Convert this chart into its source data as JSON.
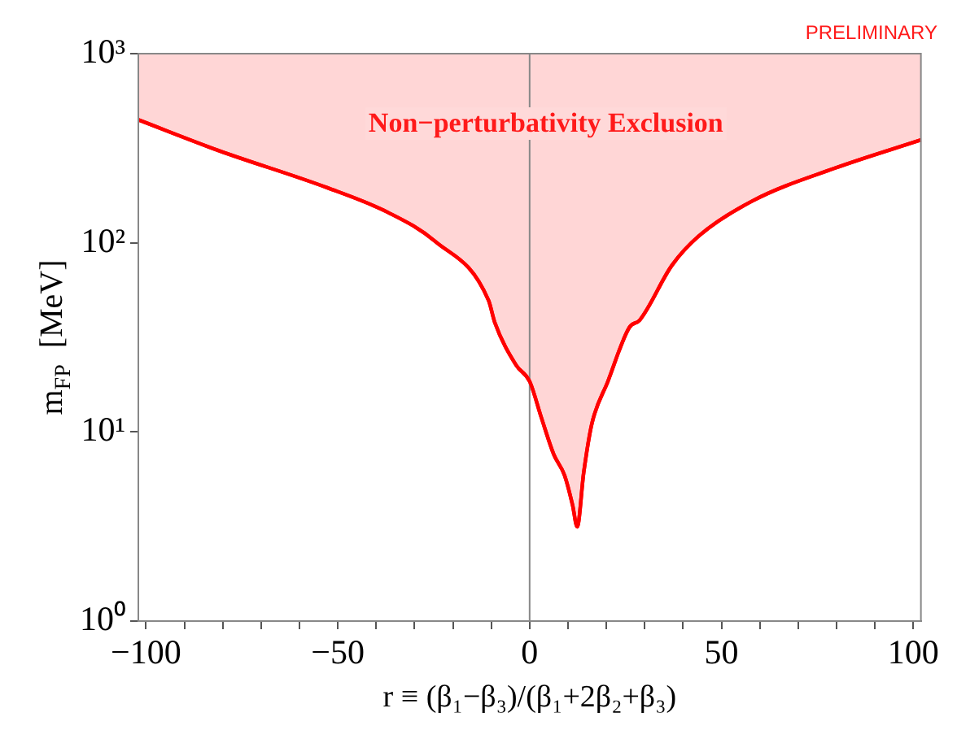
{
  "chart_data": {
    "type": "line",
    "xlabel": "r ≡ (β₁−β₃)/(β₁+2β₂+β₃)",
    "ylabel": "m$_{FP}$  [MeV]",
    "annotations": [
      "Non−perturbativity Exclusion",
      "PRELIMINARY"
    ],
    "series": [
      {
        "color": "#ff0000",
        "x": [
          -102,
          -81,
          -52.9,
          -37,
          -24.7,
          -10.7,
          -9.1,
          -3.5,
          0,
          3,
          6.3,
          9.1,
          11.2,
          12.4,
          14.1,
          16.2,
          20.4,
          26,
          28.7,
          37.1,
          44.2,
          58.2,
          79.3,
          102
        ],
        "values": [
          447,
          307,
          196,
          145,
          102,
          49.5,
          38,
          22.5,
          18.5,
          12,
          7.6,
          5.9,
          4.1,
          3.15,
          6.1,
          11,
          18.5,
          35.7,
          39,
          76,
          109,
          167,
          247,
          350
        ],
        "lower": [
          447,
          307,
          196,
          145,
          102,
          49.5,
          38,
          22.5,
          18.5,
          12,
          7.6,
          5.9,
          4.1,
          3.15,
          6.1,
          11,
          18.5,
          35.7,
          39,
          76,
          109,
          167,
          247,
          350
        ],
        "upper": [
          1000,
          1000,
          1000,
          1000,
          1000,
          1000,
          1000,
          1000,
          1000,
          1000,
          1000,
          1000,
          1000,
          1000,
          1000,
          1000,
          1000,
          1000,
          1000,
          1000,
          1000,
          1000,
          1000,
          1000
        ]
      }
    ],
    "xlim": [
      -102,
      102
    ],
    "xticks": [
      -100,
      {
        "value": -90,
        "label": null
      },
      {
        "value": -80,
        "label": null
      },
      {
        "value": -70,
        "label": null
      },
      {
        "value": -60,
        "label": null
      },
      -50,
      {
        "value": -40,
        "label": null
      },
      {
        "value": -30,
        "label": null
      },
      {
        "value": -20,
        "label": null
      },
      {
        "value": -10,
        "label": null
      },
      0,
      {
        "value": 10,
        "label": null
      },
      {
        "value": 20,
        "label": null
      },
      {
        "value": 30,
        "label": null
      },
      {
        "value": 40,
        "label": null
      },
      50,
      {
        "value": 60,
        "label": null
      },
      {
        "value": 70,
        "label": null
      },
      {
        "value": 80,
        "label": null
      },
      {
        "value": 90,
        "label": null
      },
      100
    ],
    "ylim": [
      1,
      1000
    ],
    "yticks": [
      {
        "value": 1,
        "label": "10⁰"
      },
      {
        "value": 10,
        "label": "10¹"
      },
      {
        "value": 100,
        "label": "10²"
      },
      {
        "value": 1000,
        "label": "10³"
      }
    ],
    "log": "y",
    "grid": false,
    "legend": false,
    "marker": "none",
    "line_style": "solid",
    "ref_lines": [
      {
        "axis": "x",
        "value": 0,
        "color": "#888888"
      }
    ]
  }
}
